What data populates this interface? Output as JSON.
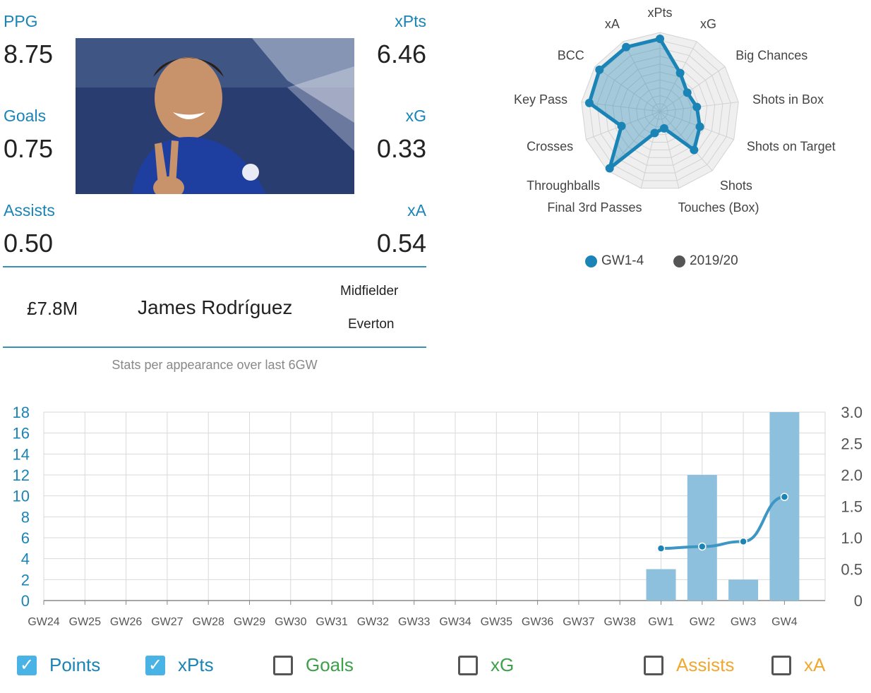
{
  "stats": {
    "ppg": {
      "label": "PPG",
      "value": "8.75"
    },
    "xpts": {
      "label": "xPts",
      "value": "6.46"
    },
    "goals": {
      "label": "Goals",
      "value": "0.75"
    },
    "xg": {
      "label": "xG",
      "value": "0.33"
    },
    "assists": {
      "label": "Assists",
      "value": "0.50"
    },
    "xa": {
      "label": "xA",
      "value": "0.54"
    }
  },
  "player": {
    "price": "£7.8M",
    "name": "James Rodríguez",
    "position": "Midfielder",
    "team": "Everton"
  },
  "caption": "Stats per appearance over last 6GW",
  "radar_legend": [
    {
      "label": "GW1-4",
      "color": "#1a84b6"
    },
    {
      "label": "2019/20",
      "color": "#555555"
    }
  ],
  "toggles": [
    {
      "label": "Points",
      "checked": true,
      "color": "#1a84b6"
    },
    {
      "label": "xPts",
      "checked": true,
      "color": "#1a84b6"
    },
    {
      "label": "Goals",
      "checked": false,
      "color": "#3da14a"
    },
    {
      "label": "xG",
      "checked": false,
      "color": "#3da14a"
    },
    {
      "label": "Assists",
      "checked": false,
      "color": "#f0a830"
    },
    {
      "label": "xA",
      "checked": false,
      "color": "#f0a830"
    }
  ],
  "chart_data": [
    {
      "type": "radar",
      "axes": [
        "xPts",
        "xG",
        "Big Chances",
        "Shots in Box",
        "Shots on Target",
        "Shots",
        "Touches (Box)",
        "Final 3rd Passes",
        "Throughballs",
        "Crosses",
        "Key Pass",
        "BCC",
        "xA"
      ],
      "series": [
        {
          "name": "GW1-4",
          "values": [
            0.92,
            0.55,
            0.42,
            0.47,
            0.54,
            0.65,
            0.22,
            0.28,
            0.96,
            0.52,
            0.9,
            0.93,
            0.92
          ]
        }
      ],
      "range": [
        0,
        1
      ]
    },
    {
      "type": "bar+line",
      "categories": [
        "GW24",
        "GW25",
        "GW26",
        "GW27",
        "GW28",
        "GW29",
        "GW30",
        "GW31",
        "GW32",
        "GW33",
        "GW34",
        "GW35",
        "GW36",
        "GW37",
        "GW38",
        "GW1",
        "GW2",
        "GW3",
        "GW4"
      ],
      "series": [
        {
          "name": "Points",
          "type": "bar",
          "axis": "left",
          "values": [
            null,
            null,
            null,
            null,
            null,
            null,
            null,
            null,
            null,
            null,
            null,
            null,
            null,
            null,
            null,
            3,
            12,
            2,
            18
          ]
        },
        {
          "name": "xPts",
          "type": "line",
          "axis": "right",
          "values": [
            null,
            null,
            null,
            null,
            null,
            null,
            null,
            null,
            null,
            null,
            null,
            null,
            null,
            null,
            null,
            0.83,
            0.86,
            0.94,
            1.65
          ]
        }
      ],
      "y_left": {
        "min": 0,
        "max": 18,
        "ticks": [
          0,
          2,
          4,
          6,
          8,
          10,
          12,
          14,
          16,
          18
        ]
      },
      "y_right": {
        "min": 0,
        "max": 3,
        "ticks": [
          "0",
          "0.5",
          "1.0",
          "1.5",
          "2.0",
          "2.5",
          "3.0"
        ]
      },
      "grid": true
    }
  ]
}
